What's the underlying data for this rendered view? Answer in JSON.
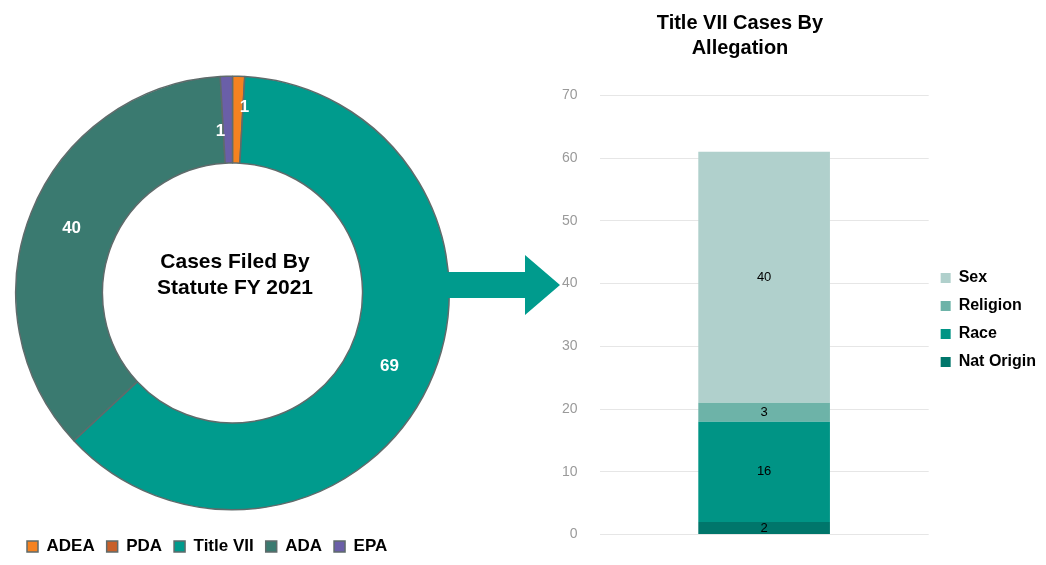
{
  "chart_data": [
    {
      "type": "donut",
      "title": "Cases Filed By Statute FY 2021",
      "categories": [
        "ADEA",
        "PDA",
        "Title VII",
        "ADA",
        "EPA"
      ],
      "values": [
        1,
        0,
        69,
        40,
        1
      ],
      "colors": [
        "#f58220",
        "#c8602a",
        "#009b8d",
        "#3a7a70",
        "#6a5fa8"
      ],
      "value_labels": [
        "1",
        null,
        "69",
        "40",
        "1"
      ],
      "legend": "bottom"
    },
    {
      "type": "bar",
      "title": "Title VII Cases By Allegation",
      "categories": [
        null
      ],
      "stacked": true,
      "series": [
        {
          "name": "Nat Origin",
          "color": "#00766b",
          "values": [
            2
          ]
        },
        {
          "name": "Race",
          "color": "#009485",
          "values": [
            16
          ]
        },
        {
          "name": "Religion",
          "color": "#6db3a8",
          "values": [
            3
          ]
        },
        {
          "name": "Sex",
          "color": "#b0d0cc",
          "values": [
            40
          ]
        }
      ],
      "data_labels": true,
      "ylim": [
        0,
        70
      ],
      "yticks": [
        0,
        10,
        20,
        30,
        40,
        50,
        60,
        70
      ],
      "grid": "y",
      "legend": "right"
    }
  ]
}
